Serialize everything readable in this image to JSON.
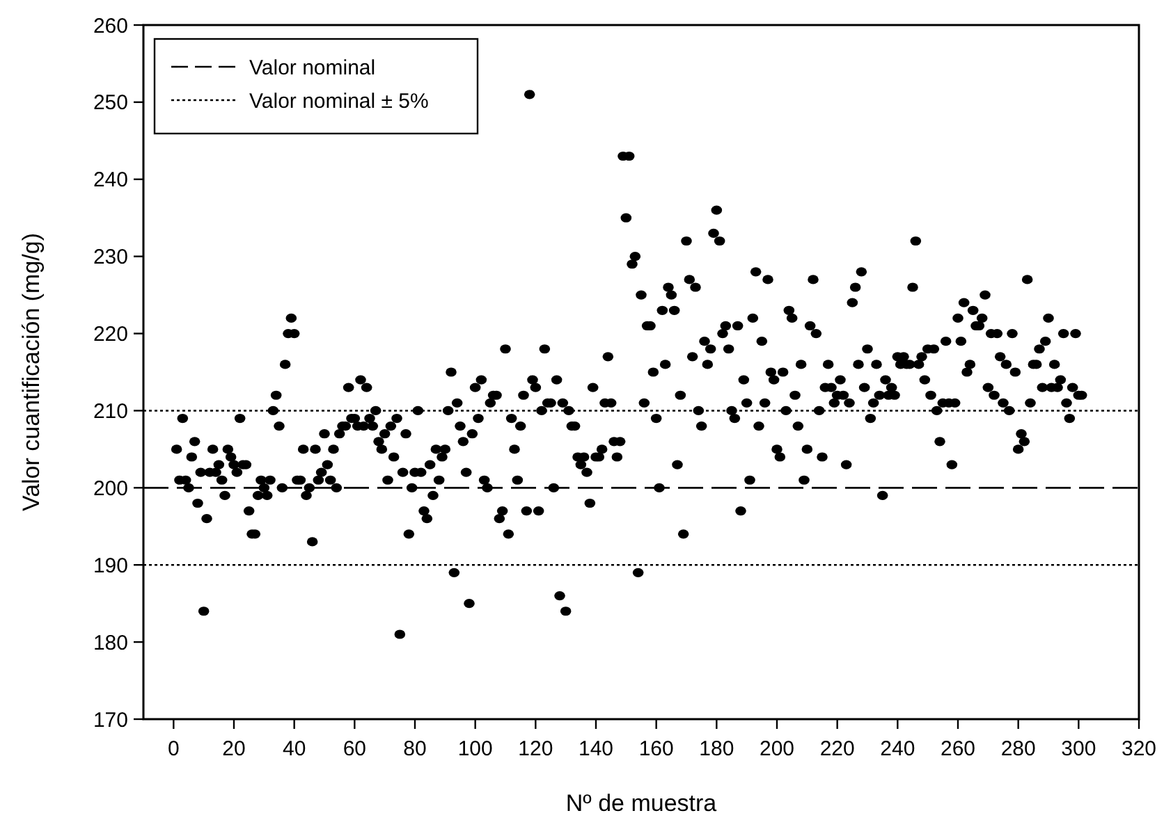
{
  "chart_data": {
    "type": "scatter",
    "xlabel": "Nº de muestra",
    "ylabel": "Valor cuantificación (mg/g)",
    "xlim": [
      -10,
      320
    ],
    "ylim": [
      170,
      260
    ],
    "xticks": [
      0,
      20,
      40,
      60,
      80,
      100,
      120,
      140,
      160,
      180,
      200,
      220,
      240,
      260,
      280,
      300,
      320
    ],
    "yticks": [
      170,
      180,
      190,
      200,
      210,
      220,
      230,
      240,
      250,
      260
    ],
    "grid": false,
    "legend": "top left",
    "marker": "circle",
    "ref_lines": [
      {
        "axis": "y",
        "value": 200,
        "label": "Valor nominal",
        "line_style": "dashed",
        "color": "#000000"
      },
      {
        "axis": "y",
        "value": 210,
        "label": "Valor nominal ± 5%",
        "line_style": "dotted",
        "color": "#000000"
      },
      {
        "axis": "y",
        "value": 190,
        "label": null,
        "line_style": "dotted",
        "color": "#000000"
      }
    ],
    "series": [
      {
        "color": "#000000",
        "x": [
          1,
          2,
          3,
          4,
          5,
          6,
          7,
          8,
          9,
          10,
          11,
          12,
          13,
          14,
          15,
          16,
          17,
          18,
          19,
          20,
          21,
          22,
          23,
          24,
          25,
          26,
          27,
          28,
          29,
          30,
          31,
          32,
          33,
          34,
          35,
          36,
          37,
          38,
          39,
          40,
          41,
          42,
          43,
          44,
          45,
          46,
          47,
          48,
          49,
          50,
          51,
          52,
          53,
          54,
          55,
          56,
          57,
          58,
          59,
          60,
          61,
          62,
          63,
          64,
          65,
          66,
          67,
          68,
          69,
          70,
          71,
          72,
          73,
          74,
          75,
          76,
          77,
          78,
          79,
          80,
          81,
          82,
          83,
          84,
          85,
          86,
          87,
          88,
          89,
          90,
          91,
          92,
          93,
          94,
          95,
          96,
          97,
          98,
          99,
          100,
          101,
          102,
          103,
          104,
          105,
          106,
          107,
          108,
          109,
          110,
          111,
          112,
          113,
          114,
          115,
          116,
          117,
          118,
          119,
          120,
          121,
          122,
          123,
          124,
          125,
          126,
          127,
          128,
          129,
          130,
          131,
          132,
          133,
          134,
          135,
          136,
          137,
          138,
          139,
          140,
          141,
          142,
          143,
          144,
          145,
          146,
          147,
          148,
          149,
          150,
          151,
          152,
          153,
          154,
          155,
          156,
          157,
          158,
          159,
          160,
          161,
          162,
          163,
          164,
          165,
          166,
          167,
          168,
          169,
          170,
          171,
          172,
          173,
          174,
          175,
          176,
          177,
          178,
          179,
          180,
          181,
          182,
          183,
          184,
          185,
          186,
          187,
          188,
          189,
          190,
          191,
          192,
          193,
          194,
          195,
          196,
          197,
          198,
          199,
          200,
          201,
          202,
          203,
          204,
          205,
          206,
          207,
          208,
          209,
          210,
          211,
          212,
          213,
          214,
          215,
          216,
          217,
          218,
          219,
          220,
          221,
          222,
          223,
          224,
          225,
          226,
          227,
          228,
          229,
          230,
          231,
          232,
          233,
          234,
          235,
          236,
          237,
          238,
          239,
          240,
          241,
          242,
          243,
          244,
          245,
          246,
          247,
          248,
          249,
          250,
          251,
          252,
          253,
          254,
          255,
          256,
          257,
          258,
          259,
          260,
          261,
          262,
          263,
          264,
          265,
          266,
          267,
          268,
          269,
          270,
          271,
          272,
          273,
          274,
          275,
          276,
          277,
          278,
          279,
          280,
          281,
          282,
          283,
          284,
          285,
          286,
          287,
          288,
          289,
          290,
          291,
          292,
          293,
          294,
          295,
          296,
          297,
          298,
          299,
          300,
          301
        ],
        "values": [
          205,
          201,
          209,
          201,
          200,
          204,
          206,
          198,
          202,
          184,
          196,
          202,
          205,
          202,
          203,
          201,
          199,
          205,
          204,
          203,
          202,
          209,
          203,
          203,
          197,
          194,
          194,
          199,
          201,
          200,
          199,
          201,
          210,
          212,
          208,
          200,
          216,
          220,
          222,
          220,
          201,
          201,
          205,
          199,
          200,
          193,
          205,
          201,
          202,
          207,
          203,
          201,
          205,
          200,
          207,
          208,
          208,
          213,
          209,
          209,
          208,
          214,
          208,
          213,
          209,
          208,
          210,
          206,
          205,
          207,
          201,
          208,
          204,
          209,
          181,
          202,
          207,
          194,
          200,
          202,
          210,
          202,
          197,
          196,
          203,
          199,
          205,
          201,
          204,
          205,
          210,
          215,
          189,
          211,
          208,
          206,
          202,
          185,
          207,
          213,
          209,
          214,
          201,
          200,
          211,
          212,
          212,
          196,
          197,
          218,
          194,
          209,
          205,
          201,
          208,
          212,
          197,
          251,
          214,
          213,
          197,
          210,
          218,
          211,
          211,
          200,
          214,
          186,
          211,
          184,
          210,
          208,
          208,
          204,
          203,
          204,
          202,
          198,
          213,
          204,
          204,
          205,
          211,
          217,
          211,
          206,
          204,
          206,
          243,
          235,
          243,
          229,
          230,
          189,
          225,
          211,
          221,
          221,
          215,
          209,
          200,
          223,
          216,
          226,
          225,
          223,
          203,
          212,
          194,
          232,
          227,
          217,
          226,
          210,
          208,
          219,
          216,
          218,
          233,
          236,
          232,
          220,
          221,
          218,
          210,
          209,
          221,
          197,
          214,
          211,
          201,
          222,
          228,
          208,
          219,
          211,
          227,
          215,
          214,
          205,
          204,
          215,
          210,
          223,
          222,
          212,
          208,
          216,
          201,
          205,
          221,
          227,
          220,
          210,
          204,
          213,
          216,
          213,
          211,
          212,
          214,
          212,
          203,
          211,
          224,
          226,
          216,
          228,
          213,
          218,
          209,
          211,
          216,
          212,
          199,
          214,
          212,
          213,
          212,
          217,
          216,
          217,
          216,
          216,
          226,
          232,
          216,
          217,
          214,
          218,
          212,
          218,
          210,
          206,
          211,
          219,
          211,
          203,
          211,
          222,
          219,
          224,
          215,
          216,
          223,
          221,
          221,
          222,
          225,
          213,
          220,
          212,
          220,
          217,
          211,
          216,
          210,
          220,
          215,
          205,
          207,
          206,
          227,
          211,
          216,
          216,
          218,
          213,
          219,
          222,
          213,
          216,
          213,
          214,
          220,
          211,
          209,
          213,
          220,
          212,
          212
        ]
      }
    ]
  }
}
